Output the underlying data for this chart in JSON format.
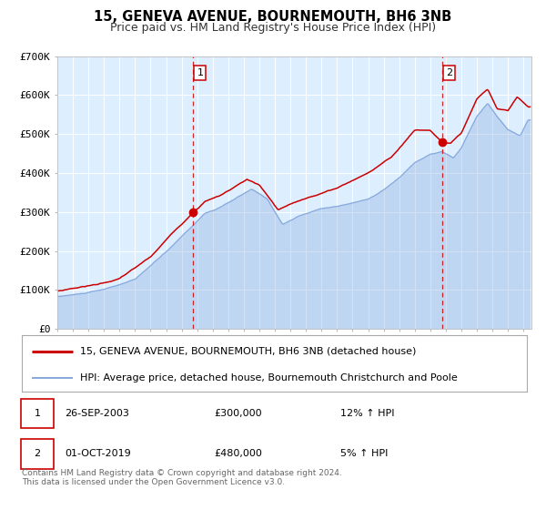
{
  "title": "15, GENEVA AVENUE, BOURNEMOUTH, BH6 3NB",
  "subtitle": "Price paid vs. HM Land Registry's House Price Index (HPI)",
  "legend_line1": "15, GENEVA AVENUE, BOURNEMOUTH, BH6 3NB (detached house)",
  "legend_line2": "HPI: Average price, detached house, Bournemouth Christchurch and Poole",
  "marker1_date": "26-SEP-2003",
  "marker1_price": "£300,000",
  "marker1_hpi": "12% ↑ HPI",
  "marker2_date": "01-OCT-2019",
  "marker2_price": "£480,000",
  "marker2_hpi": "5% ↑ HPI",
  "footer1": "Contains HM Land Registry data © Crown copyright and database right 2024.",
  "footer2": "This data is licensed under the Open Government Licence v3.0.",
  "xmin": 1995.0,
  "xmax": 2025.5,
  "ymin": 0,
  "ymax": 700000,
  "yticks": [
    0,
    100000,
    200000,
    300000,
    400000,
    500000,
    600000,
    700000
  ],
  "ytick_labels": [
    "£0",
    "£100K",
    "£200K",
    "£300K",
    "£400K",
    "£500K",
    "£600K",
    "£700K"
  ],
  "background_color": "#ddeeff",
  "outer_bg_color": "#ffffff",
  "red_line_color": "#cc0000",
  "blue_line_color": "#88aadd",
  "marker_dot_color": "#cc0000",
  "vline_color": "#cc0000",
  "grid_color": "#ffffff",
  "marker1_x": 2003.73,
  "marker1_y": 300000,
  "marker2_x": 2019.75,
  "marker2_y": 480000,
  "title_fontsize": 10.5,
  "subtitle_fontsize": 9,
  "axis_fontsize": 8,
  "legend_fontsize": 8,
  "table_fontsize": 8,
  "footer_fontsize": 6.5
}
